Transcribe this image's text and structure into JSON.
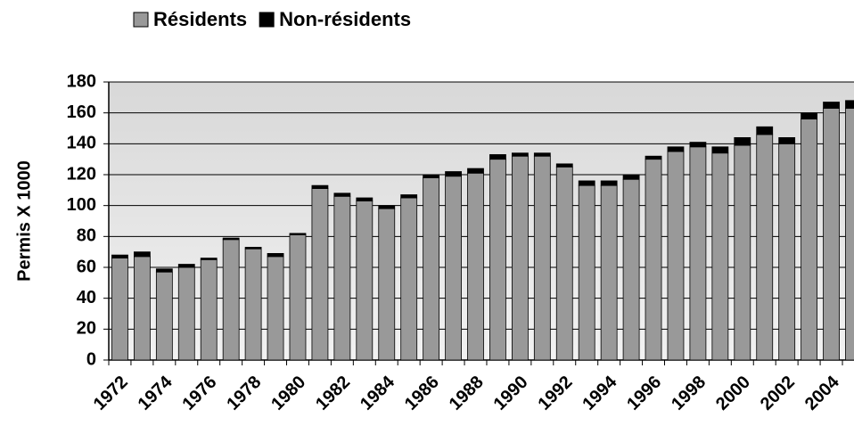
{
  "chart_data": {
    "type": "stacked_bar",
    "ylabel": "Permis X 1000",
    "categories": [
      "1972",
      null,
      "1974",
      null,
      "1976",
      null,
      "1978",
      null,
      "1980",
      null,
      "1982",
      null,
      "1984",
      null,
      "1986",
      null,
      "1988",
      null,
      "1990",
      null,
      "1992",
      null,
      "1994",
      null,
      "1996",
      null,
      "1998",
      null,
      "2000",
      null,
      "2002",
      null,
      "2004",
      null
    ],
    "series": [
      {
        "name": "Résidents",
        "color": "#999999",
        "values": [
          66,
          67,
          57,
          60,
          65,
          78,
          72,
          67,
          81,
          111,
          106,
          103,
          98,
          105,
          118,
          119,
          121,
          130,
          132,
          132,
          125,
          113,
          113,
          117,
          130,
          135,
          138,
          134,
          139,
          146,
          140,
          156,
          163,
          163
        ]
      },
      {
        "name": "Non-résidents",
        "color": "#000000",
        "values": [
          2,
          3,
          2,
          2,
          1,
          1,
          1,
          2,
          1,
          2,
          2,
          2,
          2,
          2,
          2,
          3,
          3,
          3,
          2,
          2,
          2,
          3,
          3,
          3,
          2,
          3,
          3,
          4,
          5,
          5,
          4,
          4,
          4,
          5
        ]
      }
    ],
    "ylim": [
      0,
      180
    ],
    "yticks": [
      0,
      20,
      40,
      60,
      80,
      100,
      120,
      140,
      160,
      180
    ],
    "grid": true,
    "legend": "top"
  }
}
